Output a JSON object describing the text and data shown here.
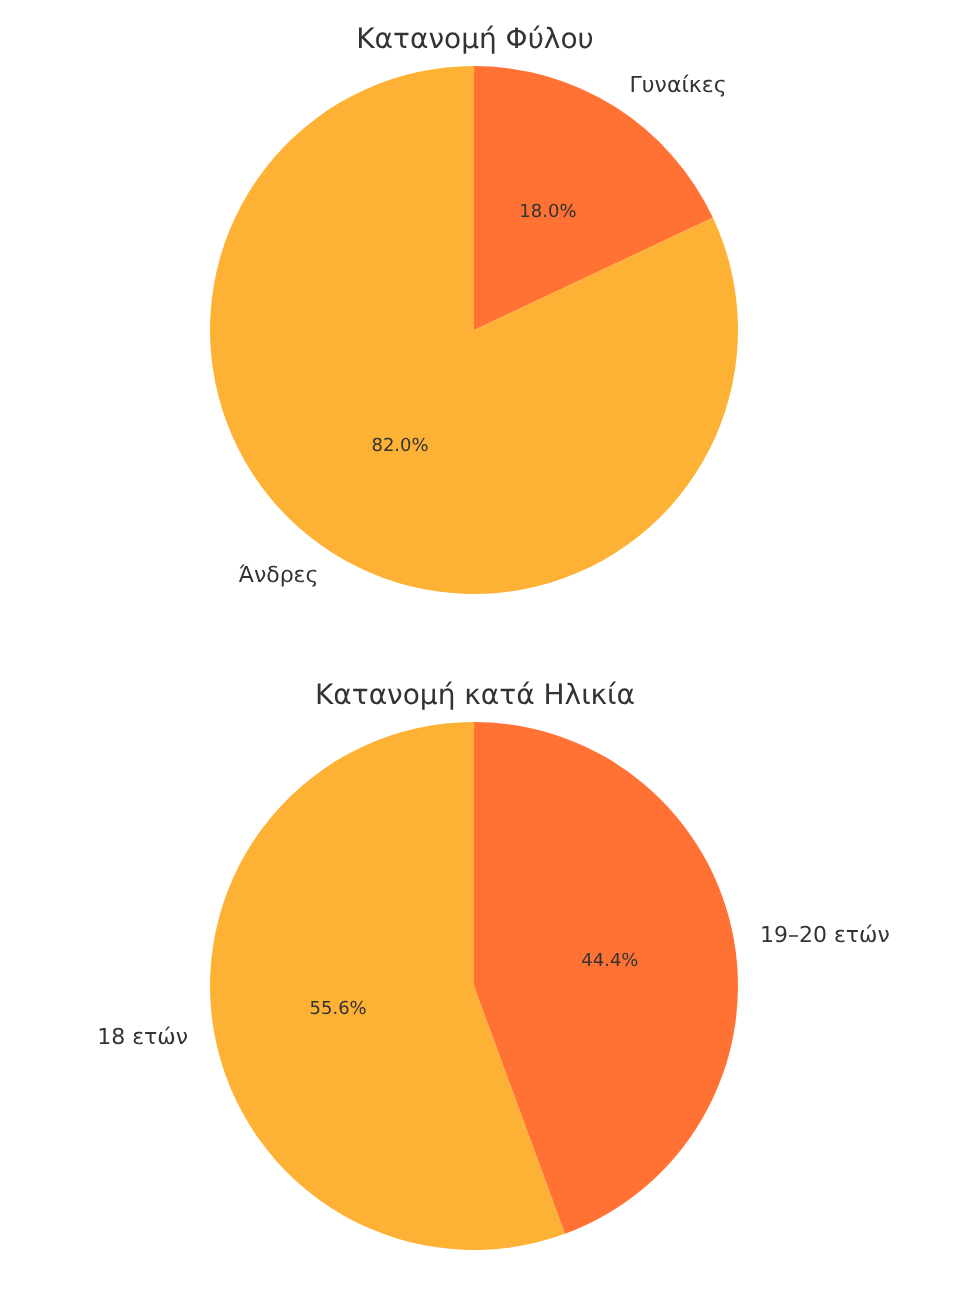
{
  "chart_data": [
    {
      "type": "pie",
      "title": "Κατανομή Φύλου",
      "categories": [
        "Άνδρες",
        "Γυναίκες"
      ],
      "values": [
        82.0,
        18.0
      ],
      "colors": [
        "#fdb235",
        "#ff7233"
      ],
      "value_labels": [
        "82.0%",
        "18.0%"
      ]
    },
    {
      "type": "pie",
      "title": "Κατανομή κατά Ηλικία",
      "categories": [
        "18 ετών",
        "19–20 ετών"
      ],
      "values": [
        55.6,
        44.4
      ],
      "colors": [
        "#fdb235",
        "#ff7233"
      ],
      "value_labels": [
        "55.6%",
        "44.4%"
      ]
    }
  ]
}
